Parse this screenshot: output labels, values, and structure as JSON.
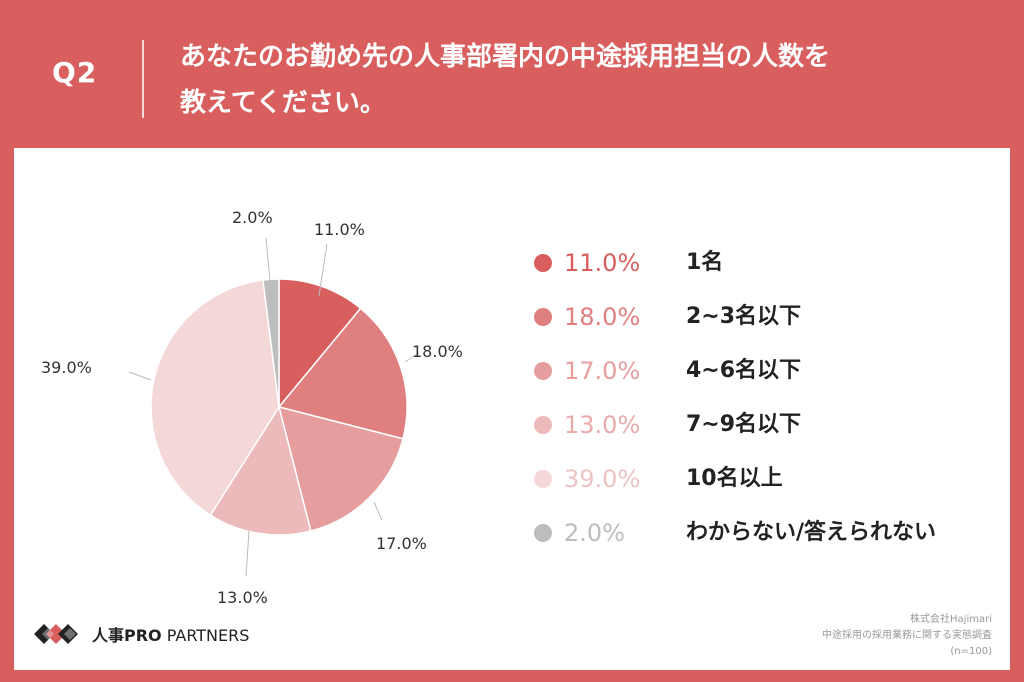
{
  "header": {
    "q_label": "Q2",
    "question_line1": "あなたのお勤め先の人事部署内の中途採用担当の人数を",
    "question_line2": "教えてください。"
  },
  "chart_data": {
    "type": "pie",
    "title": "",
    "categories": [
      "1名",
      "2~3名以下",
      "4~6名以下",
      "7~9名以下",
      "10名以上",
      "わからない/答えられない"
    ],
    "values": [
      11.0,
      18.0,
      17.0,
      13.0,
      39.0,
      2.0
    ],
    "value_labels": [
      "11.0%",
      "18.0%",
      "17.0%",
      "13.0%",
      "39.0%",
      "2.0%"
    ],
    "colors": [
      "#d95f5f",
      "#df7f7f",
      "#e59d9d",
      "#ecbaba",
      "#f4d7d7",
      "#bdbdbd"
    ],
    "pct_text_colors": [
      "#d95f5f",
      "#df7f7f",
      "#e59d9d",
      "#e8aaaa",
      "#edc4c4",
      "#bdbdbd"
    ],
    "start": "12 o'clock",
    "direction": "clockwise",
    "legend": "right"
  },
  "brand": {
    "name_bold": "人事PRO",
    "name_light": " PARTNERS"
  },
  "source": {
    "line1": "株式会社Hajimari",
    "line2": "中途採用の採用業務に関する実態調査",
    "line3": "(n=100)"
  }
}
